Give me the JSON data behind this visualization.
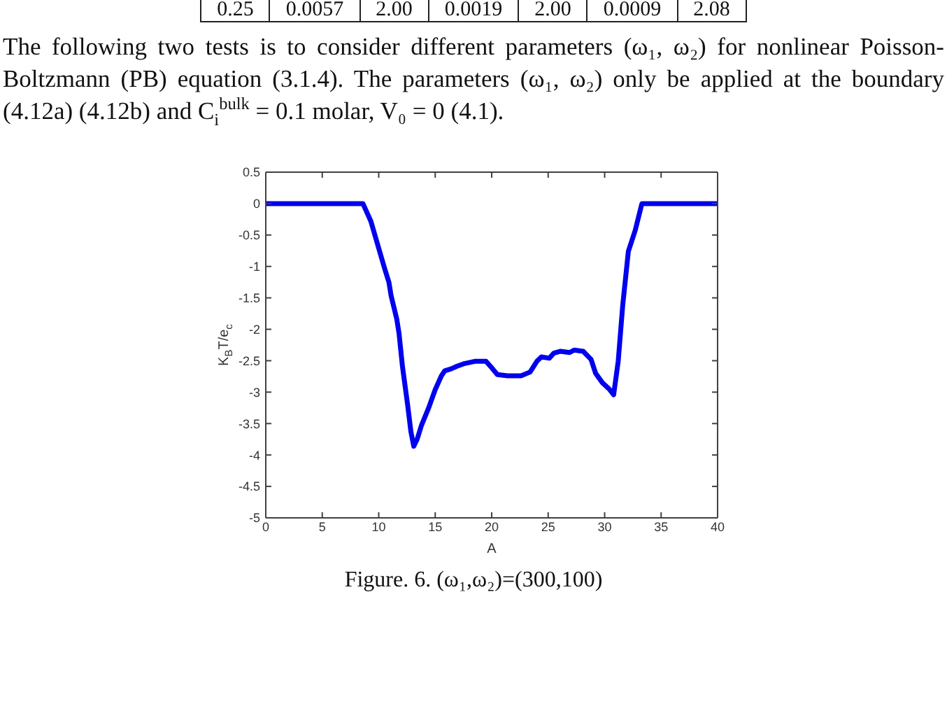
{
  "chart_data": {
    "type": "line",
    "title": "Figure. 6. (ω₁,ω₂)=(300,100)",
    "xlabel": "A",
    "ylabel": "K$_{B}$T/e$_{c}$",
    "annotations": [
      "0.25 0.0057 2.00 0.0019 2.00 0.0009 2.08",
      "The following two tests is to consider different parameters (ω₁, ω₂) for nonlinear Poisson-Boltzmann (PB) equation (3.1.4). The parameters (ω₁, ω₂) only be applied at the boundary (4.12a) (4.12b) and C$_{i}$$^{bulk}$ = 0.1 molar, V₀ = 0 (4.1)."
    ],
    "x": [
      0,
      8.6,
      9.3,
      9.9,
      10.5,
      10.9,
      11.1,
      11.6,
      11.8,
      12.1,
      12.55,
      12.85,
      13.1,
      13.4,
      13.8,
      14.4,
      15.0,
      15.55,
      15.85,
      16.4,
      16.9,
      17.5,
      18.5,
      19.1,
      19.5,
      19.9,
      20.5,
      21.4,
      22.6,
      23.4,
      24.0,
      24.4,
      25.1,
      25.5,
      26.1,
      26.9,
      27.3,
      28.1,
      28.8,
      29.2,
      29.8,
      30.4,
      30.8,
      31.2,
      31.6,
      32.1,
      32.7,
      33.3,
      40
    ],
    "values": [
      0,
      0,
      -0.28,
      -0.65,
      -1.02,
      -1.25,
      -1.47,
      -1.84,
      -2.07,
      -2.59,
      -3.19,
      -3.63,
      -3.86,
      -3.75,
      -3.52,
      -3.26,
      -2.96,
      -2.74,
      -2.66,
      -2.63,
      -2.59,
      -2.55,
      -2.51,
      -2.51,
      -2.51,
      -2.59,
      -2.72,
      -2.74,
      -2.74,
      -2.68,
      -2.51,
      -2.44,
      -2.46,
      -2.38,
      -2.35,
      -2.37,
      -2.33,
      -2.35,
      -2.48,
      -2.7,
      -2.85,
      -2.95,
      -3.04,
      -2.51,
      -1.62,
      -0.76,
      -0.43,
      0,
      0
    ],
    "color": "#0000ee",
    "xlim": [
      0,
      40
    ],
    "xticks": [
      0,
      5,
      10,
      15,
      20,
      25,
      30,
      35,
      40
    ],
    "ylim": [
      -5,
      0.5
    ],
    "yticks": [
      -5,
      -4.5,
      -4,
      -3.5,
      -3,
      -2.5,
      -2,
      -1.5,
      -1,
      -0.5,
      0,
      0.5
    ],
    "marker": "none",
    "line_style": "solid"
  }
}
